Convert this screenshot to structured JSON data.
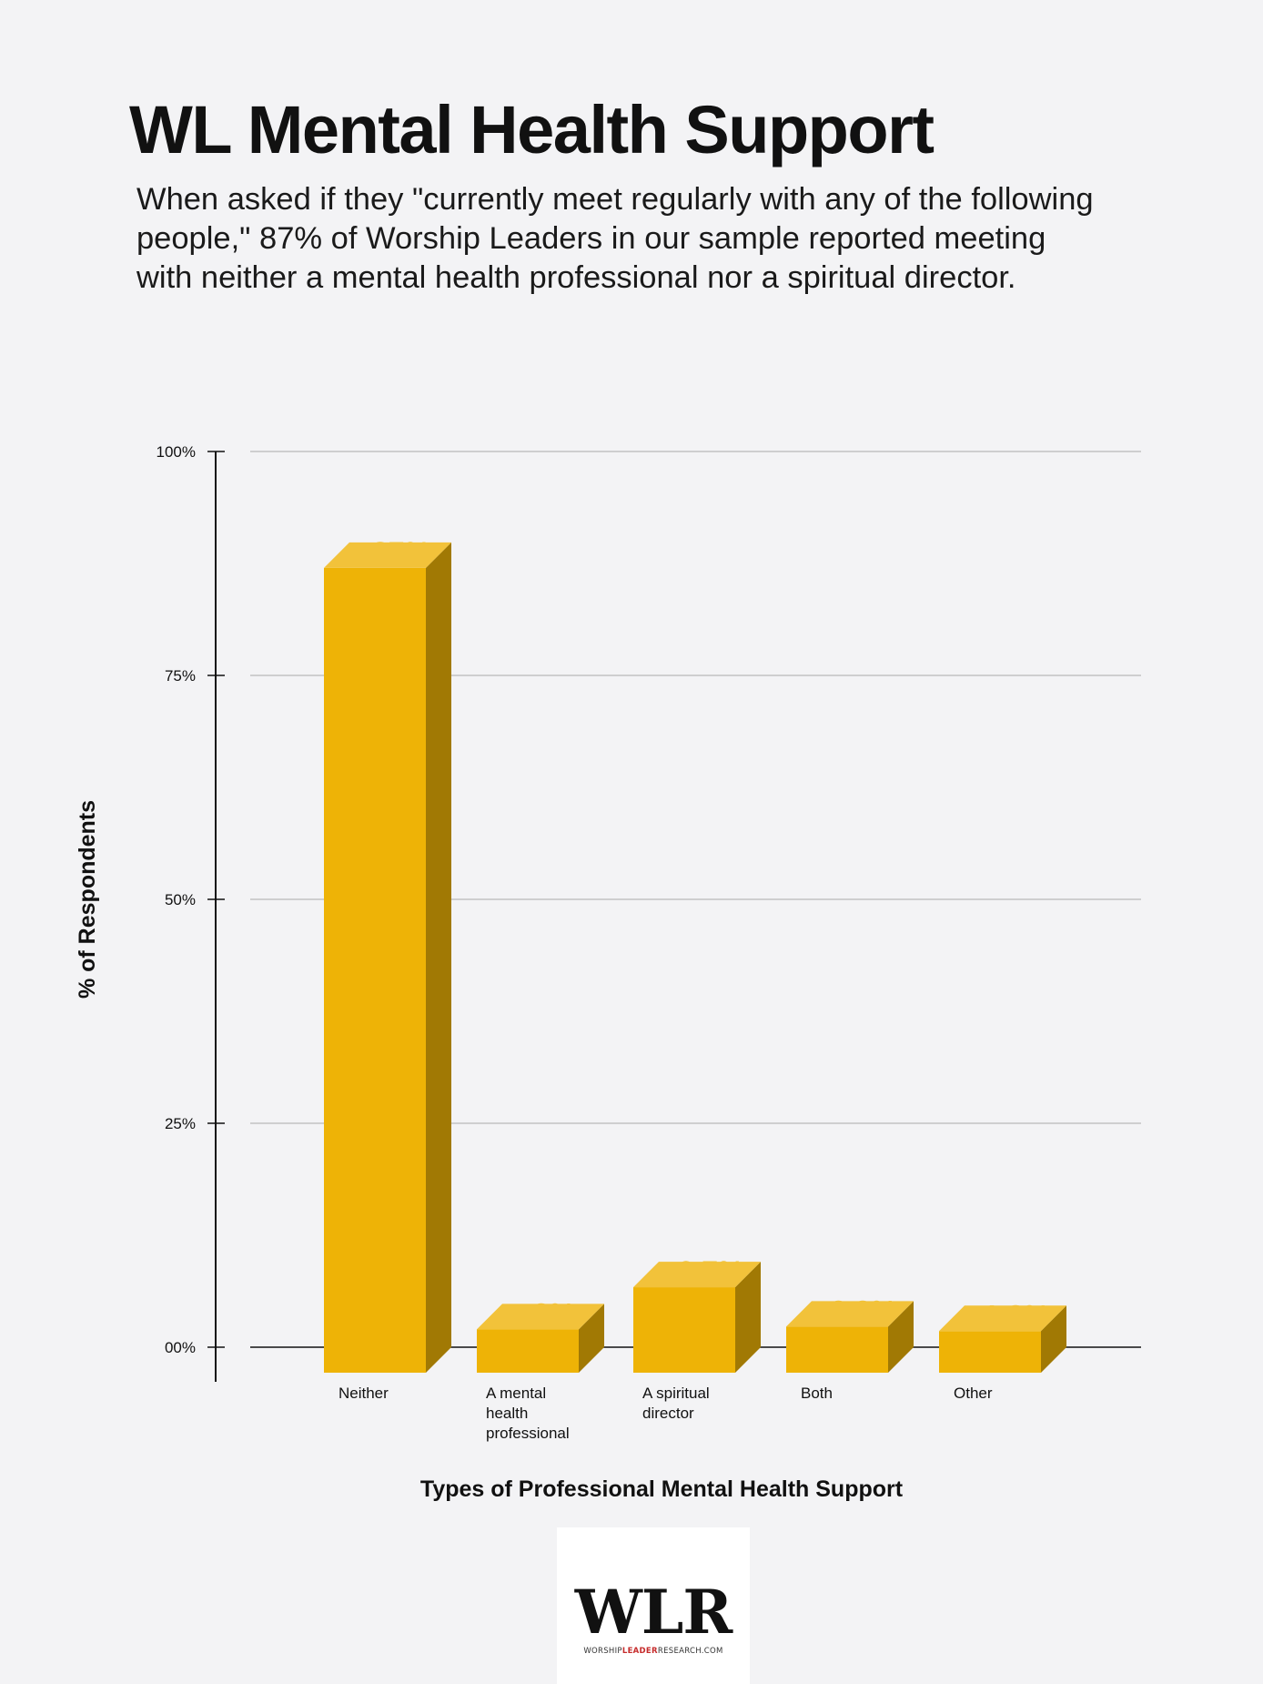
{
  "header": {
    "title": "WL Mental Health Support",
    "subtitle_lines": [
      "When asked if they \"currently meet regularly with any of the following",
      "people,\" 87% of Worship Leaders in our sample reported meeting",
      "with neither a mental health professional nor a spiritual director."
    ]
  },
  "chart_data": {
    "type": "bar",
    "title": "WL Mental Health Support",
    "xlabel": "Types of Professional Mental Health Support",
    "ylabel": "% of Respondents",
    "ylim": [
      0,
      100
    ],
    "y_ticks": [
      {
        "value": 100,
        "label": "100%"
      },
      {
        "value": 75,
        "label": "75%"
      },
      {
        "value": 50,
        "label": "50%"
      },
      {
        "value": 25,
        "label": "25%"
      },
      {
        "value": 0,
        "label": "00%"
      }
    ],
    "grid": true,
    "categories": [
      [
        "Neither"
      ],
      [
        "A mental",
        "health",
        "professional"
      ],
      [
        "A spiritual",
        "director"
      ],
      [
        "Both"
      ],
      [
        "Other"
      ]
    ],
    "values": [
      87,
      2,
      6.7,
      2.3,
      1.8
    ],
    "data_labels": [
      "87%",
      "2%",
      "6.7%",
      "2.3%",
      "1.8%"
    ],
    "colors": {
      "bar_front": "#eeb306",
      "bar_top": "#f2c23a",
      "bar_side": "#a17904",
      "label": "#f0c43c",
      "grid": "#b9b9b9",
      "axis": "#111111"
    }
  },
  "logo": {
    "mark": "WLR",
    "sub_pre": "WORSHIP",
    "sub_accent": "LEADER",
    "sub_post": "RESEARCH.COM"
  }
}
